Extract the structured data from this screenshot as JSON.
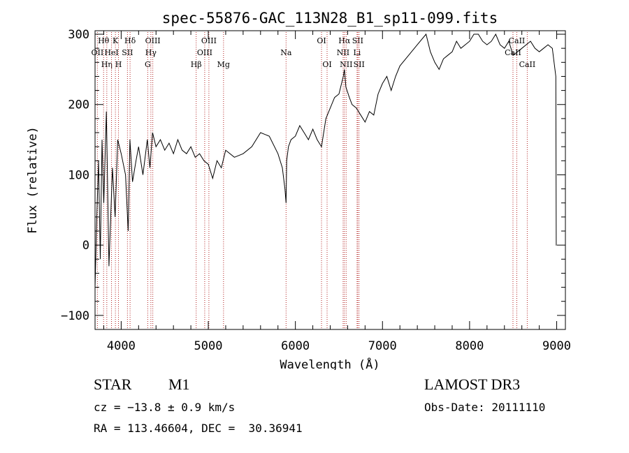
{
  "chart_data": {
    "type": "line",
    "title": "spec-55876-GAC_113N28_B1_sp11-099.fits",
    "xlabel": "Wavelength (Å)",
    "ylabel": "Flux (relative)",
    "xlim": [
      3700,
      9100
    ],
    "ylim": [
      -120,
      305
    ],
    "xticks": [
      4000,
      5000,
      6000,
      7000,
      8000,
      9000
    ],
    "xtick_labels": [
      "4000",
      "5000",
      "6000",
      "7000",
      "8000",
      "9000"
    ],
    "yticks": [
      -100,
      0,
      100,
      200,
      300
    ],
    "ytick_labels": [
      "−100",
      "0",
      "100",
      "200",
      "300"
    ],
    "grid": false,
    "series": [
      {
        "name": "flux",
        "x": [
          3700,
          3720,
          3740,
          3760,
          3780,
          3800,
          3830,
          3860,
          3900,
          3930,
          3960,
          4000,
          4050,
          4080,
          4100,
          4130,
          4170,
          4200,
          4250,
          4300,
          4330,
          4360,
          4400,
          4450,
          4500,
          4550,
          4600,
          4650,
          4700,
          4750,
          4800,
          4850,
          4900,
          4950,
          5000,
          5050,
          5100,
          5150,
          5200,
          5300,
          5400,
          5500,
          5600,
          5700,
          5800,
          5850,
          5880,
          5893,
          5900,
          5920,
          5950,
          6000,
          6050,
          6100,
          6150,
          6200,
          6250,
          6300,
          6350,
          6400,
          6450,
          6500,
          6550,
          6563,
          6580,
          6620,
          6650,
          6700,
          6750,
          6800,
          6850,
          6900,
          6950,
          7000,
          7050,
          7100,
          7150,
          7200,
          7300,
          7400,
          7500,
          7550,
          7600,
          7650,
          7700,
          7750,
          7800,
          7850,
          7900,
          7950,
          8000,
          8050,
          8100,
          8150,
          8200,
          8250,
          8300,
          8350,
          8400,
          8450,
          8500,
          8550,
          8600,
          8650,
          8700,
          8750,
          8800,
          8850,
          8900,
          8950,
          8990,
          8995,
          9000
        ],
        "y": [
          -60,
          40,
          120,
          -20,
          150,
          60,
          190,
          -30,
          110,
          40,
          150,
          130,
          100,
          20,
          150,
          90,
          120,
          140,
          100,
          150,
          110,
          160,
          140,
          150,
          135,
          145,
          130,
          150,
          135,
          130,
          140,
          125,
          130,
          120,
          115,
          95,
          120,
          110,
          135,
          125,
          130,
          140,
          160,
          155,
          130,
          110,
          80,
          60,
          120,
          140,
          150,
          155,
          170,
          160,
          150,
          165,
          150,
          140,
          180,
          195,
          210,
          215,
          240,
          250,
          225,
          210,
          200,
          195,
          185,
          175,
          190,
          185,
          215,
          230,
          240,
          220,
          240,
          255,
          270,
          285,
          300,
          275,
          260,
          250,
          265,
          270,
          275,
          290,
          280,
          285,
          290,
          300,
          300,
          290,
          285,
          290,
          300,
          285,
          280,
          290,
          270,
          275,
          280,
          285,
          290,
          280,
          275,
          280,
          285,
          280,
          240,
          0,
          0
        ]
      }
    ],
    "lines": [
      {
        "label": "Hθ",
        "x": 3798,
        "row": 1
      },
      {
        "label": "OII",
        "x": 3727,
        "row": 2
      },
      {
        "label": "Hη",
        "x": 3835,
        "row": 3
      },
      {
        "label": "K",
        "x": 3934,
        "row": 1
      },
      {
        "label": "HeI",
        "x": 3889,
        "row": 2
      },
      {
        "label": "H",
        "x": 3969,
        "row": 3
      },
      {
        "label": "Hδ",
        "x": 4102,
        "row": 1
      },
      {
        "label": "SII",
        "x": 4072,
        "row": 2
      },
      {
        "label": "OIII",
        "x": 4363,
        "row": 1
      },
      {
        "label": "Hγ",
        "x": 4341,
        "row": 2
      },
      {
        "label": "G",
        "x": 4305,
        "row": 3
      },
      {
        "label": "OIII",
        "x": 5007,
        "row": 1
      },
      {
        "label": "OIII",
        "x": 4959,
        "row": 2
      },
      {
        "label": "Hβ",
        "x": 4861,
        "row": 3
      },
      {
        "label": "Mg",
        "x": 5175,
        "row": 3
      },
      {
        "label": "Na",
        "x": 5893,
        "row": 2
      },
      {
        "label": "OI",
        "x": 6300,
        "row": 1
      },
      {
        "label": "OI",
        "x": 6364,
        "row": 3
      },
      {
        "label": "Hα",
        "x": 6563,
        "row": 1
      },
      {
        "label": "SII",
        "x": 6716,
        "row": 1
      },
      {
        "label": "NII",
        "x": 6548,
        "row": 2
      },
      {
        "label": "Li",
        "x": 6708,
        "row": 2
      },
      {
        "label": "NII",
        "x": 6583,
        "row": 3
      },
      {
        "label": "SII",
        "x": 6731,
        "row": 3
      },
      {
        "label": "CaII",
        "x": 8542,
        "row": 1
      },
      {
        "label": "CaII",
        "x": 8498,
        "row": 2
      },
      {
        "label": "CaII",
        "x": 8662,
        "row": 3
      }
    ]
  },
  "info": {
    "object_class": "STAR",
    "object_subclass": "M1",
    "survey": "LAMOST DR3",
    "cz": "cz = −13.8 ± 0.9 km/s",
    "obs_date": "Obs-Date: 20111110",
    "radec": "RA = 113.46604, DEC =  30.36941"
  },
  "colors": {
    "spectrum": "#000000",
    "line_markers": "#b22222",
    "axes": "#000000",
    "background": "#ffffff"
  }
}
